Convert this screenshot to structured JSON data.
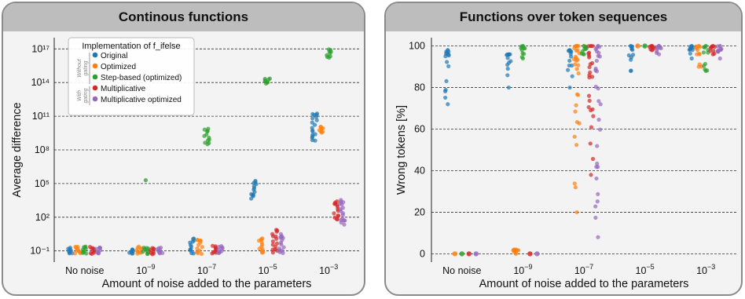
{
  "panels": {
    "left_title": "Continous functions",
    "right_title": "Functions over token sequences"
  },
  "legend": {
    "title": "Implementation of f_ifelse",
    "group_without": [
      "Without",
      "gating"
    ],
    "group_with": [
      "With",
      "gating"
    ]
  },
  "colors": {
    "Original": "#1f77b4",
    "Optimized": "#ff7f0e",
    "Step-based (optimized)": "#2ca02c",
    "Multiplicative": "#d62728",
    "Multiplicative optimized": "#9467bd"
  },
  "chart_data": [
    {
      "type": "scatter",
      "title": "Continous functions",
      "xlabel": "Amount of noise added to the parameters",
      "ylabel": "Average difference",
      "categories": [
        "No noise",
        "10^-9",
        "10^-7",
        "10^-5",
        "10^-3"
      ],
      "yscale": "log",
      "ylim": [
        0.01,
        1e+18
      ],
      "yticks": [
        {
          "exp": -1,
          "label": "10⁻¹"
        },
        {
          "exp": 2,
          "label": "10²"
        },
        {
          "exp": 5,
          "label": "10⁵"
        },
        {
          "exp": 8,
          "label": "10⁸"
        },
        {
          "exp": 11,
          "label": "10¹¹"
        },
        {
          "exp": 14,
          "label": "10¹⁴"
        },
        {
          "exp": 17,
          "label": "10¹⁷"
        }
      ],
      "grid": "horizontal dashed",
      "legend_position": "top-left",
      "series": [
        {
          "name": "Original",
          "log10_ranges": [
            [
              -1.3,
              -0.7
            ],
            [
              -1.3,
              -0.8
            ],
            [
              -1.3,
              0.2
            ],
            [
              3.6,
              5.3
            ],
            [
              8.6,
              11.6
            ]
          ]
        },
        {
          "name": "Optimized",
          "log10_ranges": [
            [
              -1.3,
              -0.6
            ],
            [
              -1.3,
              -0.6
            ],
            [
              -1.3,
              0.2
            ],
            [
              -1.3,
              0.2
            ],
            [
              9.5,
              10.1
            ]
          ]
        },
        {
          "name": "Step-based (optimized)",
          "log10_ranges": [
            [
              -1.3,
              -0.5
            ],
            [
              -1.3,
              -0.6
            ],
            [
              8.4,
              9.9
            ],
            [
              13.9,
              14.4
            ],
            [
              16.2,
              17.0
            ]
          ]
        },
        {
          "name": "Multiplicative",
          "log10_ranges": [
            [
              -1.3,
              -0.6
            ],
            [
              -1.3,
              -0.7
            ],
            [
              -1.3,
              -0.5
            ],
            [
              -1.3,
              1.0
            ],
            [
              1.7,
              3.6
            ]
          ]
        },
        {
          "name": "Multiplicative optimized",
          "log10_ranges": [
            [
              -1.3,
              -0.6
            ],
            [
              -1.3,
              -0.7
            ],
            [
              -1.3,
              -0.5
            ],
            [
              -1.3,
              0.6
            ],
            [
              1.2,
              3.7
            ]
          ]
        }
      ],
      "outliers": [
        {
          "series": "Step-based (optimized)",
          "category": "10^-9",
          "log10": 5.3
        }
      ]
    },
    {
      "type": "scatter",
      "title": "Functions over token sequences",
      "xlabel": "Amount of noise added to the parameters",
      "ylabel": "Wrong tokens [%]",
      "categories": [
        "No noise",
        "10^-9",
        "10^-7",
        "10^-5",
        "10^-3"
      ],
      "ylim": [
        -4,
        104
      ],
      "yticks": [
        0,
        20,
        40,
        60,
        80,
        100
      ],
      "grid": "horizontal dashed",
      "series": [
        {
          "name": "Original",
          "ranges": [
            [
              72,
              98
            ],
            [
              80,
              96
            ],
            [
              80,
              98
            ],
            [
              88,
              100
            ],
            [
              94,
              100
            ]
          ]
        },
        {
          "name": "Optimized",
          "ranges": [
            [
              0,
              0
            ],
            [
              0,
              2
            ],
            [
              20,
              100
            ],
            [
              100,
              100
            ],
            [
              90,
              100
            ]
          ]
        },
        {
          "name": "Step-based (optimized)",
          "ranges": [
            [
              0,
              0
            ],
            [
              94,
              100
            ],
            [
              96,
              100
            ],
            [
              100,
              100
            ],
            [
              88,
              100
            ]
          ]
        },
        {
          "name": "Multiplicative",
          "ranges": [
            [
              0,
              0
            ],
            [
              0,
              0
            ],
            [
              38,
              100
            ],
            [
              98,
              100
            ],
            [
              96,
              100
            ]
          ]
        },
        {
          "name": "Multiplicative optimized",
          "ranges": [
            [
              0,
              0
            ],
            [
              0,
              0
            ],
            [
              8,
              100
            ],
            [
              96,
              100
            ],
            [
              94,
              100
            ]
          ]
        }
      ]
    }
  ]
}
